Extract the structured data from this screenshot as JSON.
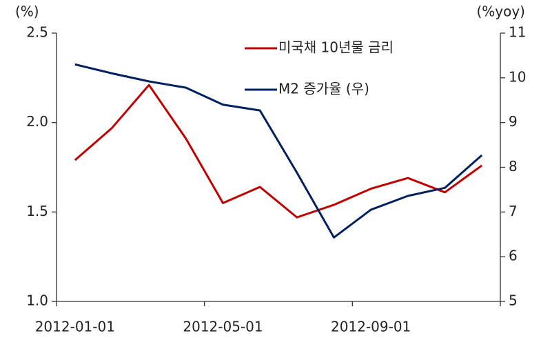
{
  "chart_data": {
    "type": "line",
    "y_unit_label": "(%)",
    "y2_unit_label": "(%yoy)",
    "categories": [
      "2012-01-01",
      null,
      null,
      null,
      "2012-05-01",
      null,
      null,
      null,
      "2012-09-01",
      null,
      null,
      null
    ],
    "series": [
      {
        "name": "미국채 10년물 금리",
        "color": "#c00000",
        "axis": "y",
        "values": [
          1.79,
          1.97,
          2.21,
          1.91,
          1.55,
          1.64,
          1.47,
          1.54,
          1.63,
          1.69,
          1.61,
          1.76
        ]
      },
      {
        "name": "M2 증가율 (우)",
        "color": "#002060",
        "axis": "y2",
        "values": [
          10.3,
          10.1,
          9.92,
          9.78,
          9.4,
          9.27,
          7.88,
          6.43,
          7.05,
          7.36,
          7.54,
          8.27
        ]
      }
    ],
    "ylim": [
      1,
      2.5
    ],
    "yticks": [
      {
        "value": 1,
        "label": "1.0"
      },
      {
        "value": 1.5,
        "label": "1.5"
      },
      {
        "value": 2,
        "label": "2.0"
      },
      {
        "value": 2.5,
        "label": "2.5"
      }
    ],
    "y2lim": [
      5,
      11
    ],
    "y2ticks": [
      5,
      6,
      7,
      8,
      9,
      10,
      11
    ],
    "grid": false
  }
}
